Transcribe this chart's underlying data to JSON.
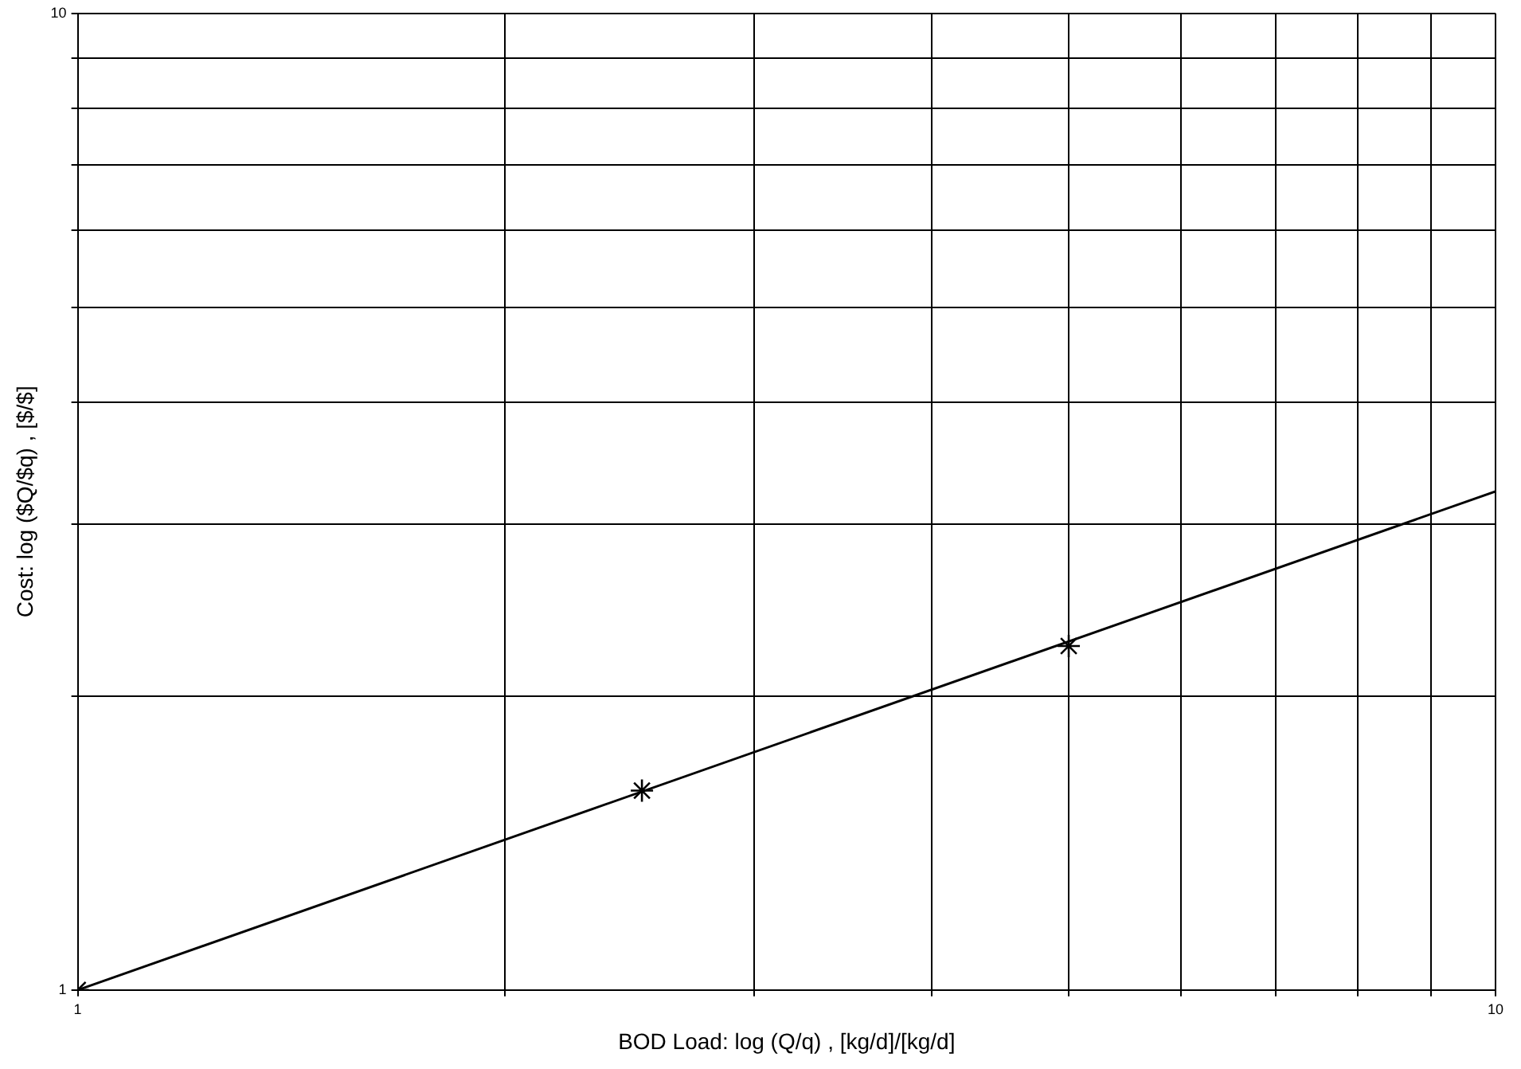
{
  "chart_data": {
    "type": "scatter",
    "xlabel": "BOD Load: log (Q/q) , [kg/d]/[kg/d]",
    "ylabel": "Cost: log ($Q/$q) , [$/$]",
    "log": "xy",
    "grid": true,
    "legend": false,
    "xlim": [
      1,
      10
    ],
    "ylim": [
      1,
      10
    ],
    "xticks": [
      1,
      {
        "value": 2,
        "label": null
      },
      {
        "value": 3,
        "label": null
      },
      {
        "value": 4,
        "label": null
      },
      {
        "value": 5,
        "label": null
      },
      {
        "value": 6,
        "label": null
      },
      {
        "value": 7,
        "label": null
      },
      {
        "value": 8,
        "label": null
      },
      {
        "value": 9,
        "label": null
      },
      10
    ],
    "yticks": [
      1,
      {
        "value": 2,
        "label": null
      },
      {
        "value": 3,
        "label": null
      },
      {
        "value": 4,
        "label": null
      },
      {
        "value": 5,
        "label": null
      },
      {
        "value": 6,
        "label": null
      },
      {
        "value": 7,
        "label": null
      },
      {
        "value": 8,
        "label": null
      },
      {
        "value": 9,
        "label": null
      },
      10
    ],
    "series": [
      {
        "type": "scatter",
        "color": "#000000",
        "marker": "cross",
        "x": [
          1,
          2.5,
          5
        ],
        "values": [
          1,
          1.6,
          2.25
        ]
      },
      {
        "type": "line",
        "color": "#000000",
        "marker": "none",
        "line_style": "solid",
        "x": [
          1,
          10
        ],
        "values": [
          1,
          3.24
        ]
      }
    ]
  }
}
